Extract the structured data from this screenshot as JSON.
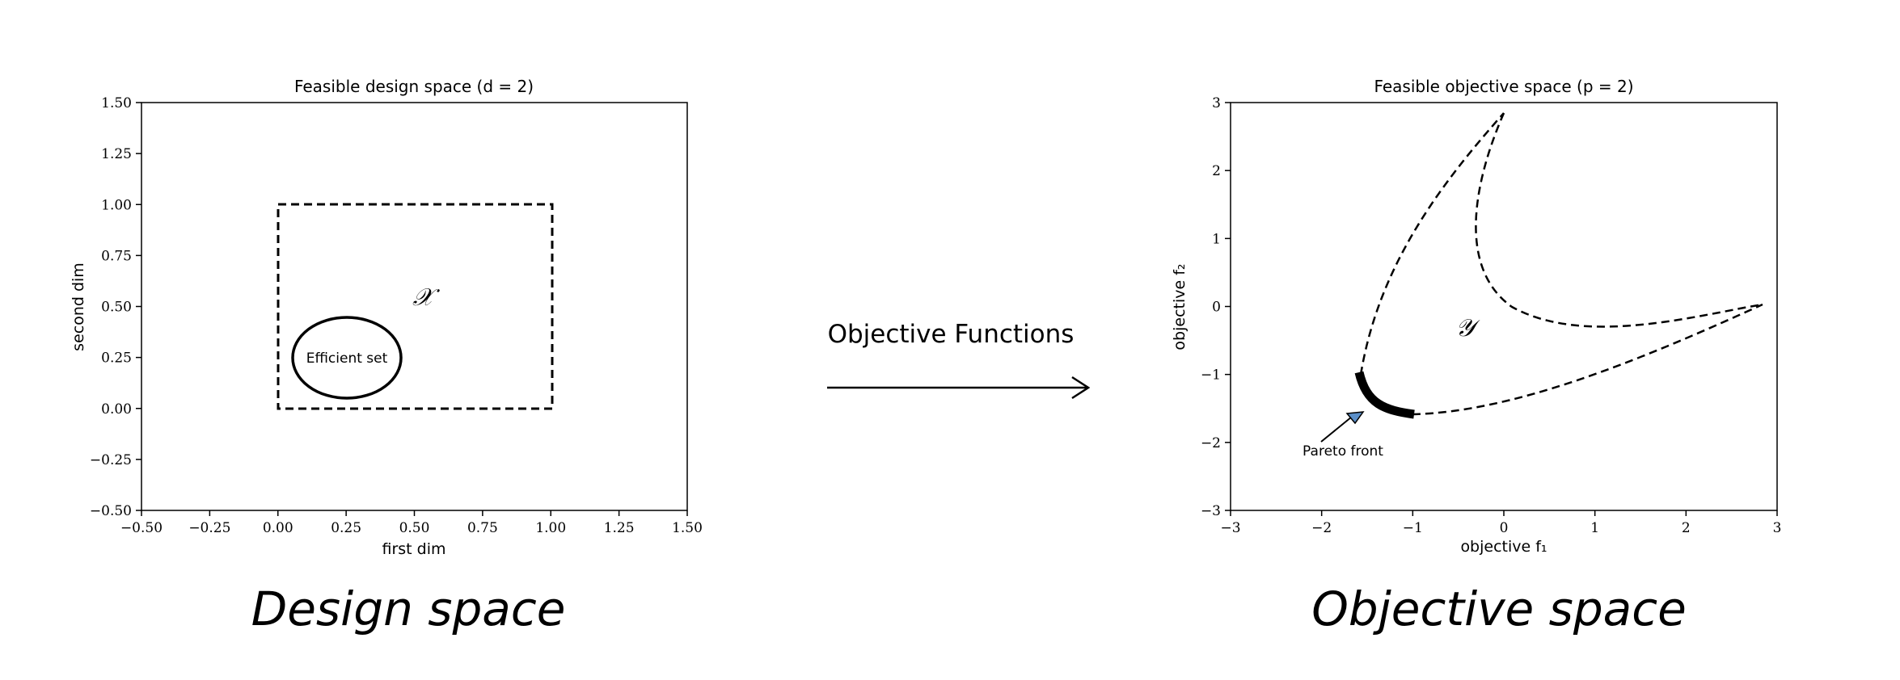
{
  "design_plot": {
    "title": "Feasible design space (d = 2)",
    "xlabel": "first dim",
    "ylabel": "second dim",
    "xlim": [
      -0.5,
      1.5
    ],
    "ylim": [
      -0.5,
      1.5
    ],
    "xticks": [
      "−0.50",
      "−0.25",
      "0.00",
      "0.25",
      "0.50",
      "0.75",
      "1.00",
      "1.25",
      "1.50"
    ],
    "yticks": [
      "−0.50",
      "−0.25",
      "0.00",
      "0.25",
      "0.50",
      "0.75",
      "1.00",
      "1.25",
      "1.50"
    ],
    "set_label": "𝒳",
    "efficient_label": "Efficient set"
  },
  "objective_plot": {
    "title": "Feasible objective space (p = 2)",
    "xlabel": "objective f₁",
    "ylabel": "objective f₂",
    "xlim": [
      -3,
      3
    ],
    "ylim": [
      -3,
      3
    ],
    "xticks": [
      "−3",
      "−2",
      "−1",
      "0",
      "1",
      "2",
      "3"
    ],
    "yticks": [
      "−3",
      "−2",
      "−1",
      "0",
      "1",
      "2",
      "3"
    ],
    "set_label": "𝒴",
    "pareto_label": "Pareto front",
    "arrow_color": "#5b8fc9"
  },
  "arrow_label": "Objective Functions",
  "left_caption": "Design space",
  "right_caption": "Objective space"
}
